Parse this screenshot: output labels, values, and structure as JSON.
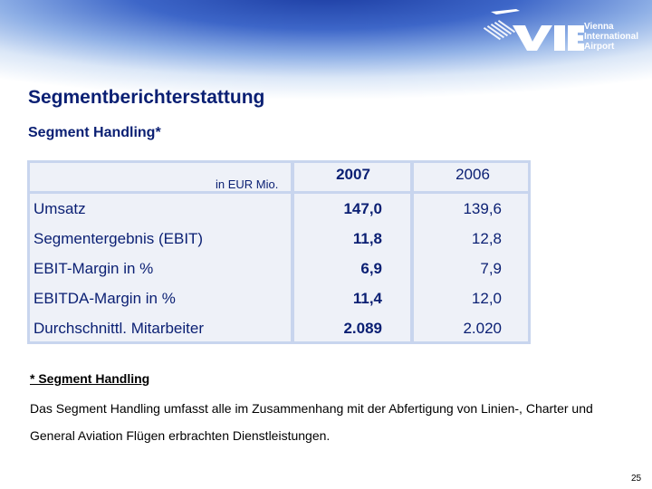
{
  "slide": {
    "title": "Segmentberichterstattung",
    "subtitle": "Segment Handling*",
    "page_number": "25"
  },
  "logo": {
    "mark": "VIE",
    "line1": "Vienna",
    "line2": "International",
    "line3": "Airport"
  },
  "table": {
    "unit_label": "in EUR Mio.",
    "col1": "2007",
    "col2": "2006",
    "rows": [
      {
        "label": "Umsatz",
        "v2007": "147,0",
        "v2006": "139,6"
      },
      {
        "label": "Segmentergebnis (EBIT)",
        "v2007": "11,8",
        "v2006": "12,8"
      },
      {
        "label": "EBIT-Margin in %",
        "v2007": "6,9",
        "v2006": "7,9"
      },
      {
        "label": "EBITDA-Margin in %",
        "v2007": "11,4",
        "v2006": "12,0"
      },
      {
        "label": "Durchschnittl. Mitarbeiter",
        "v2007": "2.089",
        "v2006": "2.020"
      }
    ]
  },
  "footnote": {
    "title": "* Segment Handling",
    "text": "Das Segment Handling umfasst alle im Zusammenhang mit der Abfertigung von Linien-, Charter und General Aviation Flügen erbrachten Dienstleistungen."
  },
  "colors": {
    "title": "#0a1f73",
    "table_border": "#c8d5ee",
    "table_cell": "#eef1f8"
  }
}
